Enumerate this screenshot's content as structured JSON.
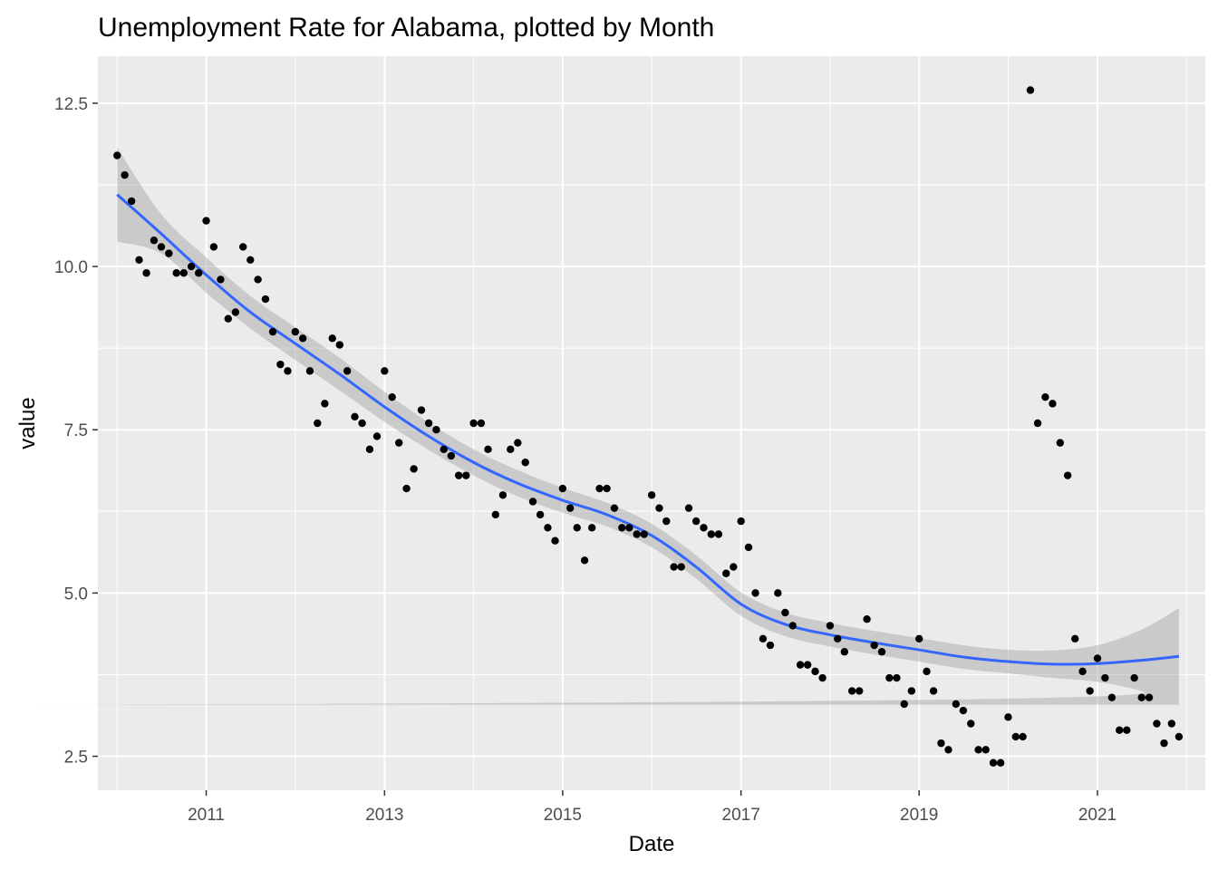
{
  "chart_data": {
    "type": "scatter",
    "title": "Unemployment Rate for Alabama, plotted by Month",
    "xlabel": "Date",
    "ylabel": "value",
    "x_ticks": [
      "2011",
      "2013",
      "2015",
      "2017",
      "2019",
      "2021"
    ],
    "y_ticks": [
      "2.5",
      "5.0",
      "7.5",
      "10.0",
      "12.5"
    ],
    "xlim": [
      "2009-10-14",
      "2022-03-19"
    ],
    "ylim": [
      1.98,
      13.22
    ],
    "grid": true,
    "legend": "none",
    "colors": {
      "panel": "#EBEBEB",
      "grid": "#FFFFFF",
      "points": "#000000",
      "smooth_line": "#3366FF",
      "confidence_band": "#999999"
    },
    "series": [
      {
        "kind": "points",
        "points": [
          [
            "2010-01-01",
            11.7
          ],
          [
            "2010-02-01",
            11.4
          ],
          [
            "2010-03-01",
            11.0
          ],
          [
            "2010-04-01",
            10.1
          ],
          [
            "2010-05-01",
            9.9
          ],
          [
            "2010-06-01",
            10.4
          ],
          [
            "2010-07-01",
            10.3
          ],
          [
            "2010-08-01",
            10.2
          ],
          [
            "2010-09-01",
            9.9
          ],
          [
            "2010-10-01",
            9.9
          ],
          [
            "2010-11-01",
            10.0
          ],
          [
            "2010-12-01",
            9.9
          ],
          [
            "2011-01-01",
            10.7
          ],
          [
            "2011-02-01",
            10.3
          ],
          [
            "2011-03-01",
            9.8
          ],
          [
            "2011-04-01",
            9.2
          ],
          [
            "2011-05-01",
            9.3
          ],
          [
            "2011-06-01",
            10.3
          ],
          [
            "2011-07-01",
            10.1
          ],
          [
            "2011-08-01",
            9.8
          ],
          [
            "2011-09-01",
            9.5
          ],
          [
            "2011-10-01",
            9.0
          ],
          [
            "2011-11-01",
            8.5
          ],
          [
            "2011-12-01",
            8.4
          ],
          [
            "2012-01-01",
            9.0
          ],
          [
            "2012-02-01",
            8.9
          ],
          [
            "2012-03-01",
            8.4
          ],
          [
            "2012-04-01",
            7.6
          ],
          [
            "2012-05-01",
            7.9
          ],
          [
            "2012-06-01",
            8.9
          ],
          [
            "2012-07-01",
            8.8
          ],
          [
            "2012-08-01",
            8.4
          ],
          [
            "2012-09-01",
            7.7
          ],
          [
            "2012-10-01",
            7.6
          ],
          [
            "2012-11-01",
            7.2
          ],
          [
            "2012-12-01",
            7.4
          ],
          [
            "2013-01-01",
            8.4
          ],
          [
            "2013-02-01",
            8.0
          ],
          [
            "2013-03-01",
            7.3
          ],
          [
            "2013-04-01",
            6.6
          ],
          [
            "2013-05-01",
            6.9
          ],
          [
            "2013-06-01",
            7.8
          ],
          [
            "2013-07-01",
            7.6
          ],
          [
            "2013-08-01",
            7.5
          ],
          [
            "2013-09-01",
            7.2
          ],
          [
            "2013-10-01",
            7.1
          ],
          [
            "2013-11-01",
            6.8
          ],
          [
            "2013-12-01",
            6.8
          ],
          [
            "2014-01-01",
            7.6
          ],
          [
            "2014-02-01",
            7.6
          ],
          [
            "2014-03-01",
            7.2
          ],
          [
            "2014-04-01",
            6.2
          ],
          [
            "2014-05-01",
            6.5
          ],
          [
            "2014-06-01",
            7.2
          ],
          [
            "2014-07-01",
            7.3
          ],
          [
            "2014-08-01",
            7.0
          ],
          [
            "2014-09-01",
            6.4
          ],
          [
            "2014-10-01",
            6.2
          ],
          [
            "2014-11-01",
            6.0
          ],
          [
            "2014-12-01",
            5.8
          ],
          [
            "2015-01-01",
            6.6
          ],
          [
            "2015-02-01",
            6.3
          ],
          [
            "2015-03-01",
            6.0
          ],
          [
            "2015-04-01",
            5.5
          ],
          [
            "2015-05-01",
            6.0
          ],
          [
            "2015-06-01",
            6.6
          ],
          [
            "2015-07-01",
            6.6
          ],
          [
            "2015-08-01",
            6.3
          ],
          [
            "2015-09-01",
            6.0
          ],
          [
            "2015-10-01",
            6.0
          ],
          [
            "2015-11-01",
            5.9
          ],
          [
            "2015-12-01",
            5.9
          ],
          [
            "2016-01-01",
            6.5
          ],
          [
            "2016-02-01",
            6.3
          ],
          [
            "2016-03-01",
            6.1
          ],
          [
            "2016-04-01",
            5.4
          ],
          [
            "2016-05-01",
            5.4
          ],
          [
            "2016-06-01",
            6.3
          ],
          [
            "2016-07-01",
            6.1
          ],
          [
            "2016-08-01",
            6.0
          ],
          [
            "2016-09-01",
            5.9
          ],
          [
            "2016-10-01",
            5.9
          ],
          [
            "2016-11-01",
            5.3
          ],
          [
            "2016-12-01",
            5.4
          ],
          [
            "2017-01-01",
            6.1
          ],
          [
            "2017-02-01",
            5.7
          ],
          [
            "2017-03-01",
            5.0
          ],
          [
            "2017-04-01",
            4.3
          ],
          [
            "2017-05-01",
            4.2
          ],
          [
            "2017-06-01",
            5.0
          ],
          [
            "2017-07-01",
            4.7
          ],
          [
            "2017-08-01",
            4.5
          ],
          [
            "2017-09-01",
            3.9
          ],
          [
            "2017-10-01",
            3.9
          ],
          [
            "2017-11-01",
            3.8
          ],
          [
            "2017-12-01",
            3.7
          ],
          [
            "2018-01-01",
            4.5
          ],
          [
            "2018-02-01",
            4.3
          ],
          [
            "2018-03-01",
            4.1
          ],
          [
            "2018-04-01",
            3.5
          ],
          [
            "2018-05-01",
            3.5
          ],
          [
            "2018-06-01",
            4.6
          ],
          [
            "2018-07-01",
            4.2
          ],
          [
            "2018-08-01",
            4.1
          ],
          [
            "2018-09-01",
            3.7
          ],
          [
            "2018-10-01",
            3.7
          ],
          [
            "2018-11-01",
            3.3
          ],
          [
            "2018-12-01",
            3.5
          ],
          [
            "2019-01-01",
            4.3
          ],
          [
            "2019-02-01",
            3.8
          ],
          [
            "2019-03-01",
            3.5
          ],
          [
            "2019-04-01",
            2.7
          ],
          [
            "2019-05-01",
            2.6
          ],
          [
            "2019-06-01",
            3.3
          ],
          [
            "2019-07-01",
            3.2
          ],
          [
            "2019-08-01",
            3.0
          ],
          [
            "2019-09-01",
            2.6
          ],
          [
            "2019-10-01",
            2.6
          ],
          [
            "2019-11-01",
            2.4
          ],
          [
            "2019-12-01",
            2.4
          ],
          [
            "2020-01-01",
            3.1
          ],
          [
            "2020-02-01",
            2.8
          ],
          [
            "2020-03-01",
            2.8
          ],
          [
            "2020-04-01",
            12.7
          ],
          [
            "2020-05-01",
            7.6
          ],
          [
            "2020-06-01",
            8.0
          ],
          [
            "2020-07-01",
            7.9
          ],
          [
            "2020-08-01",
            7.3
          ],
          [
            "2020-09-01",
            6.8
          ],
          [
            "2020-10-01",
            4.3
          ],
          [
            "2020-11-01",
            3.8
          ],
          [
            "2020-12-01",
            3.5
          ],
          [
            "2021-01-01",
            4.0
          ],
          [
            "2021-02-01",
            3.7
          ],
          [
            "2021-03-01",
            3.4
          ],
          [
            "2021-04-01",
            2.9
          ],
          [
            "2021-05-01",
            2.9
          ],
          [
            "2021-06-01",
            3.7
          ],
          [
            "2021-07-01",
            3.4
          ],
          [
            "2021-08-01",
            3.4
          ],
          [
            "2021-09-01",
            3.0
          ],
          [
            "2021-10-01",
            2.7
          ],
          [
            "2021-11-01",
            3.0
          ],
          [
            "2021-12-01",
            2.8
          ]
        ]
      },
      {
        "kind": "smooth",
        "points": [
          [
            "2010-01-01",
            11.1
          ],
          [
            "2010-07-01",
            10.5
          ],
          [
            "2011-01-01",
            9.87
          ],
          [
            "2011-07-01",
            9.3
          ],
          [
            "2012-01-01",
            8.82
          ],
          [
            "2012-07-01",
            8.35
          ],
          [
            "2013-01-01",
            7.85
          ],
          [
            "2013-07-01",
            7.4
          ],
          [
            "2014-01-01",
            7.0
          ],
          [
            "2014-07-01",
            6.68
          ],
          [
            "2015-01-01",
            6.42
          ],
          [
            "2015-07-01",
            6.2
          ],
          [
            "2016-01-01",
            5.88
          ],
          [
            "2016-07-01",
            5.4
          ],
          [
            "2017-01-01",
            4.83
          ],
          [
            "2017-07-01",
            4.52
          ],
          [
            "2018-01-01",
            4.36
          ],
          [
            "2018-07-01",
            4.24
          ],
          [
            "2019-01-01",
            4.13
          ],
          [
            "2019-07-01",
            4.02
          ],
          [
            "2020-01-01",
            3.95
          ],
          [
            "2020-07-01",
            3.91
          ],
          [
            "2021-01-01",
            3.92
          ],
          [
            "2021-07-01",
            3.97
          ],
          [
            "2021-12-01",
            4.03
          ]
        ],
        "band_lower": [
          10.38,
          10.2,
          9.6,
          9.05,
          8.57,
          8.1,
          7.62,
          7.19,
          6.8,
          6.48,
          6.23,
          6.02,
          5.7,
          5.22,
          4.65,
          4.34,
          4.18,
          4.06,
          3.95,
          3.84,
          3.77,
          3.7,
          3.64,
          3.5,
          3.29
        ],
        "band_upper": [
          11.82,
          10.8,
          10.14,
          9.55,
          9.07,
          8.6,
          8.08,
          7.61,
          7.2,
          6.88,
          6.61,
          6.38,
          6.06,
          5.58,
          5.01,
          4.7,
          4.54,
          4.42,
          4.31,
          4.2,
          4.13,
          4.12,
          4.2,
          4.44,
          4.77
        ]
      }
    ]
  }
}
